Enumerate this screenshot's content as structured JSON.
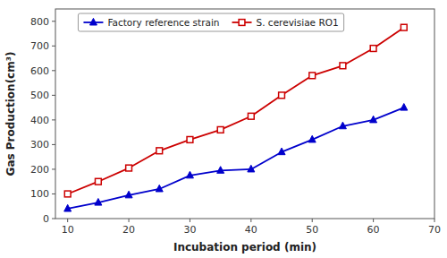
{
  "chart_data": {
    "type": "line",
    "x": [
      10,
      15,
      20,
      25,
      30,
      35,
      40,
      45,
      50,
      55,
      60,
      65
    ],
    "series": [
      {
        "name": "Factory reference strain",
        "color": "#0000cc",
        "marker": "triangle",
        "values": [
          40,
          65,
          95,
          120,
          175,
          195,
          200,
          270,
          320,
          375,
          400,
          450
        ]
      },
      {
        "name": "S. cerevisiae RO1",
        "color": "#cc0000",
        "marker": "open-square",
        "values": [
          100,
          150,
          205,
          275,
          320,
          360,
          415,
          500,
          580,
          620,
          690,
          775
        ]
      }
    ],
    "x_label": "Incubation period (min)",
    "y_label": "Gas Production(cm³)",
    "xlim": [
      8,
      70
    ],
    "ylim": [
      0,
      850
    ],
    "xticks": [
      10,
      20,
      30,
      40,
      50,
      60,
      70
    ],
    "yticks": [
      0,
      100,
      200,
      300,
      400,
      500,
      600,
      700,
      800
    ],
    "grid": false,
    "legend": "upper left"
  }
}
